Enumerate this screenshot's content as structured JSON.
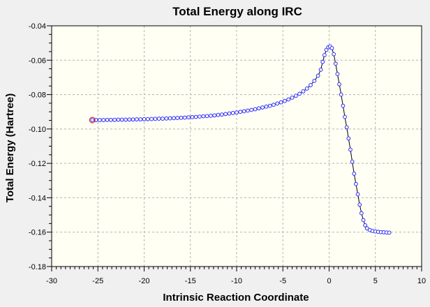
{
  "chart_data": {
    "type": "scatter",
    "title": "Total Energy along IRC",
    "xlabel": "Intrinsic Reaction Coordinate",
    "ylabel": "Total Energy (Hartree)",
    "xlim": [
      -30,
      10
    ],
    "ylim": [
      -0.18,
      -0.04
    ],
    "xticks": [
      -30,
      -25,
      -20,
      -15,
      -10,
      -5,
      0,
      5,
      10
    ],
    "xtick_labels": [
      "-30",
      "-25",
      "-20",
      "-15",
      "-10",
      "-5",
      "0",
      "5",
      "10"
    ],
    "yticks": [
      -0.04,
      -0.06,
      -0.08,
      -0.1,
      -0.12,
      -0.14,
      -0.16,
      -0.18
    ],
    "ytick_labels": [
      "-0.04",
      "-0.06",
      "-0.08",
      "-0.10",
      "-0.12",
      "-0.14",
      "-0.16",
      "-0.18"
    ],
    "grid": true,
    "colors": {
      "plot_bg": "#fffff4",
      "window_bg": "#f0f0f0",
      "marker": "#2a2aff",
      "line": "#000000",
      "highlight": "#e03030",
      "grid": "#b4b4b4"
    },
    "highlight_point": {
      "x": -25.6,
      "y": -0.0948
    },
    "series": [
      {
        "points": [
          [
            -25.6,
            -0.0948
          ],
          [
            -25.2,
            -0.0948
          ],
          [
            -24.8,
            -0.0948
          ],
          [
            -24.4,
            -0.0948
          ],
          [
            -24.0,
            -0.0947
          ],
          [
            -23.6,
            -0.0947
          ],
          [
            -23.2,
            -0.0947
          ],
          [
            -22.8,
            -0.0946
          ],
          [
            -22.4,
            -0.0946
          ],
          [
            -22.0,
            -0.0946
          ],
          [
            -21.6,
            -0.0945
          ],
          [
            -21.2,
            -0.0945
          ],
          [
            -20.8,
            -0.0944
          ],
          [
            -20.4,
            -0.0944
          ],
          [
            -20.0,
            -0.0943
          ],
          [
            -19.6,
            -0.0943
          ],
          [
            -19.2,
            -0.0942
          ],
          [
            -18.8,
            -0.0941
          ],
          [
            -18.4,
            -0.094
          ],
          [
            -18.0,
            -0.094
          ],
          [
            -17.6,
            -0.0939
          ],
          [
            -17.2,
            -0.0938
          ],
          [
            -16.8,
            -0.0937
          ],
          [
            -16.4,
            -0.0936
          ],
          [
            -16.0,
            -0.0935
          ],
          [
            -15.6,
            -0.0934
          ],
          [
            -15.2,
            -0.0932
          ],
          [
            -14.8,
            -0.0931
          ],
          [
            -14.4,
            -0.093
          ],
          [
            -14.0,
            -0.0928
          ],
          [
            -13.6,
            -0.0926
          ],
          [
            -13.2,
            -0.0925
          ],
          [
            -12.8,
            -0.0923
          ],
          [
            -12.4,
            -0.0921
          ],
          [
            -12.0,
            -0.0918
          ],
          [
            -11.6,
            -0.0916
          ],
          [
            -11.2,
            -0.0913
          ],
          [
            -10.8,
            -0.091
          ],
          [
            -10.4,
            -0.0907
          ],
          [
            -10.0,
            -0.0904
          ],
          [
            -9.6,
            -0.09
          ],
          [
            -9.2,
            -0.0897
          ],
          [
            -8.8,
            -0.0893
          ],
          [
            -8.4,
            -0.0889
          ],
          [
            -8.0,
            -0.0885
          ],
          [
            -7.6,
            -0.088
          ],
          [
            -7.2,
            -0.0875
          ],
          [
            -6.8,
            -0.087
          ],
          [
            -6.4,
            -0.0865
          ],
          [
            -6.0,
            -0.0859
          ],
          [
            -5.6,
            -0.0852
          ],
          [
            -5.2,
            -0.0845
          ],
          [
            -4.8,
            -0.0837
          ],
          [
            -4.4,
            -0.0828
          ],
          [
            -4.0,
            -0.0818
          ],
          [
            -3.6,
            -0.0807
          ],
          [
            -3.2,
            -0.0795
          ],
          [
            -2.8,
            -0.0781
          ],
          [
            -2.4,
            -0.0765
          ],
          [
            -2.0,
            -0.0745
          ],
          [
            -1.6,
            -0.072
          ],
          [
            -1.2,
            -0.069
          ],
          [
            -0.9,
            -0.0655
          ],
          [
            -0.7,
            -0.061
          ],
          [
            -0.5,
            -0.057
          ],
          [
            -0.3,
            -0.054
          ],
          [
            -0.1,
            -0.0525
          ],
          [
            0.1,
            -0.052
          ],
          [
            0.3,
            -0.053
          ],
          [
            0.5,
            -0.0565
          ],
          [
            0.7,
            -0.062
          ],
          [
            0.9,
            -0.068
          ],
          [
            1.1,
            -0.074
          ],
          [
            1.3,
            -0.08
          ],
          [
            1.5,
            -0.0865
          ],
          [
            1.7,
            -0.093
          ],
          [
            1.9,
            -0.099
          ],
          [
            2.1,
            -0.1055
          ],
          [
            2.3,
            -0.112
          ],
          [
            2.5,
            -0.119
          ],
          [
            2.7,
            -0.126
          ],
          [
            2.9,
            -0.132
          ],
          [
            3.1,
            -0.138
          ],
          [
            3.3,
            -0.144
          ],
          [
            3.5,
            -0.149
          ],
          [
            3.7,
            -0.153
          ],
          [
            3.9,
            -0.156
          ],
          [
            4.1,
            -0.1578
          ],
          [
            4.4,
            -0.1588
          ],
          [
            4.7,
            -0.1593
          ],
          [
            5.0,
            -0.1596
          ],
          [
            5.3,
            -0.1598
          ],
          [
            5.6,
            -0.16
          ],
          [
            5.9,
            -0.1601
          ],
          [
            6.2,
            -0.1602
          ],
          [
            6.5,
            -0.1603
          ]
        ]
      }
    ]
  }
}
